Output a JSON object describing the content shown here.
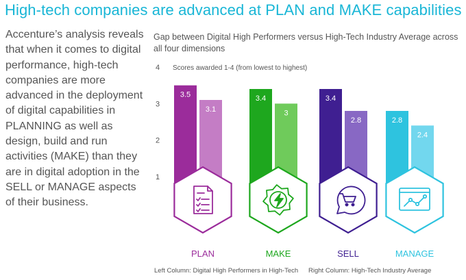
{
  "title": "High-tech companies are advanced at PLAN and MAKE capabilities",
  "intro": "Accenture’s analysis reveals that when it comes to digital performance, high-tech companies are more advanced in the deployment of digital capabilities in PLANNING as well as design, build and run activities (MAKE) than they are in digital adoption in the SELL or MANAGE aspects of their business.",
  "chart_data": {
    "type": "bar",
    "title": "Gap between Digital High Performers versus High-Tech Industry Average across all four dimensions",
    "annotation": "Scores awarded 1-4 (from lowest to highest)",
    "categories": [
      "PLAN",
      "MAKE",
      "SELL",
      "MANAGE"
    ],
    "series": [
      {
        "name": "Digital High Performers in High-Tech",
        "values": [
          3.5,
          3.4,
          3.4,
          2.8
        ]
      },
      {
        "name": "High-Tech Industry Average",
        "values": [
          3.1,
          3,
          2.8,
          2.4
        ]
      }
    ],
    "value_labels": [
      [
        "3.5",
        "3.4",
        "3.4",
        "2.8"
      ],
      [
        "3.1",
        "3",
        "2.8",
        "2.4"
      ]
    ],
    "y_ticks": [
      "1",
      "2",
      "3",
      "4"
    ],
    "ylim": [
      1,
      4
    ],
    "legend": {
      "left": "Left Column: Digital High Performers in High-Tech",
      "right": "Right Column: High-Tech Industry Average"
    },
    "colors": {
      "PLAN": [
        "#9b2c9b",
        "#c47dc5"
      ],
      "MAKE": [
        "#1ea71e",
        "#6fcb5b"
      ],
      "SELL": [
        "#3f1f91",
        "#8868c4"
      ],
      "MANAGE": [
        "#2ec3df",
        "#72d7ee"
      ]
    },
    "icons": [
      "document-checklist-icon",
      "gear-lightning-icon",
      "shopping-cart-icon",
      "dashboard-chart-icon"
    ]
  }
}
